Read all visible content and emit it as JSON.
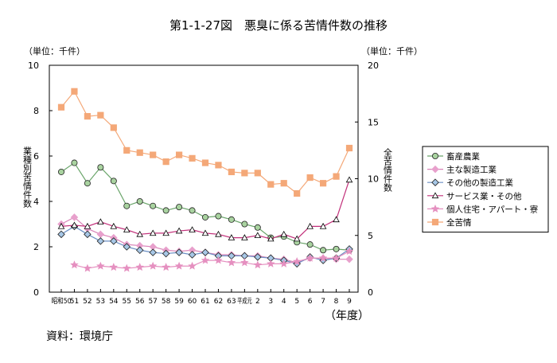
{
  "chart_data": {
    "type": "line",
    "title": "第1-1-27図　悪臭に係る苦情件数の推移",
    "unit_left": "（単位：千件）",
    "unit_right": "（単位：千件）",
    "ylabel_left": "業種別苦情件数",
    "ylabel_right": "全苦情件数",
    "xlabel": "（年度）",
    "source": "資料：環境庁",
    "categories": [
      "昭和50",
      "51",
      "52",
      "53",
      "54",
      "55",
      "56",
      "57",
      "58",
      "59",
      "60",
      "61",
      "62",
      "63",
      "平成元",
      "2",
      "3",
      "4",
      "5",
      "6",
      "7",
      "8",
      "9"
    ],
    "y_left": {
      "min": 0,
      "max": 10,
      "ticks": [
        "0",
        "2",
        "4",
        "6",
        "8",
        "10"
      ]
    },
    "y_right": {
      "min": 0,
      "max": 20,
      "ticks": [
        "0",
        "5",
        "10",
        "15",
        "20"
      ]
    },
    "grid": false,
    "legend_position": "right",
    "series": [
      {
        "name": "畜産農業",
        "axis": "left",
        "marker": "circle",
        "color": "#6aa56a",
        "fill": "#a9d3a0",
        "values": [
          5.3,
          5.7,
          4.8,
          5.5,
          4.9,
          3.8,
          4.0,
          3.8,
          3.6,
          3.75,
          3.6,
          3.3,
          3.35,
          3.2,
          3.0,
          2.85,
          2.4,
          2.45,
          2.2,
          2.1,
          1.85,
          1.9,
          1.85
        ]
      },
      {
        "name": "主な製造工業",
        "axis": "left",
        "marker": "diamond",
        "color": "#d983b8",
        "fill": "#e8a0cc",
        "values": [
          3.0,
          3.3,
          2.8,
          2.55,
          2.4,
          2.1,
          2.05,
          2.0,
          1.85,
          1.8,
          1.85,
          1.75,
          1.65,
          1.65,
          1.6,
          1.6,
          1.5,
          1.45,
          1.3,
          1.5,
          1.5,
          1.45,
          1.45
        ]
      },
      {
        "name": "その他の製造工業",
        "axis": "left",
        "marker": "diamond",
        "color": "#6b8fc4",
        "fill": "#a7c7e6",
        "values": [
          2.55,
          2.9,
          2.55,
          2.25,
          2.25,
          2.0,
          1.85,
          1.75,
          1.7,
          1.75,
          1.65,
          1.75,
          1.6,
          1.6,
          1.6,
          1.55,
          1.5,
          1.4,
          1.25,
          1.55,
          1.4,
          1.5,
          1.9
        ]
      },
      {
        "name": "サービス業・その他",
        "axis": "left",
        "marker": "triangle",
        "color": "#c2307a",
        "fill": "#ffffff",
        "values": [
          2.9,
          2.95,
          2.9,
          3.1,
          2.9,
          2.75,
          2.55,
          2.6,
          2.6,
          2.7,
          2.75,
          2.6,
          2.55,
          2.4,
          2.4,
          2.5,
          2.35,
          2.55,
          2.35,
          2.9,
          2.9,
          3.2,
          4.95
        ]
      },
      {
        "name": "個人住宅・アパート・寮",
        "axis": "left",
        "marker": "star",
        "color": "#e590c0",
        "fill": "#e590c0",
        "values": [
          null,
          1.2,
          1.05,
          1.15,
          1.1,
          1.05,
          1.1,
          1.15,
          1.1,
          1.15,
          1.15,
          1.4,
          1.4,
          1.3,
          1.3,
          1.2,
          1.25,
          1.25,
          1.35,
          1.5,
          1.5,
          1.5,
          1.8
        ]
      },
      {
        "name": "全苦情",
        "axis": "right",
        "marker": "square",
        "color": "#f4a878",
        "fill": "#f4a878",
        "values": [
          16.3,
          17.7,
          15.5,
          15.6,
          14.5,
          12.5,
          12.3,
          12.1,
          11.5,
          12.1,
          11.8,
          11.4,
          11.2,
          10.6,
          10.5,
          10.5,
          9.5,
          9.6,
          8.7,
          10.1,
          9.6,
          10.2,
          12.7
        ]
      }
    ]
  }
}
